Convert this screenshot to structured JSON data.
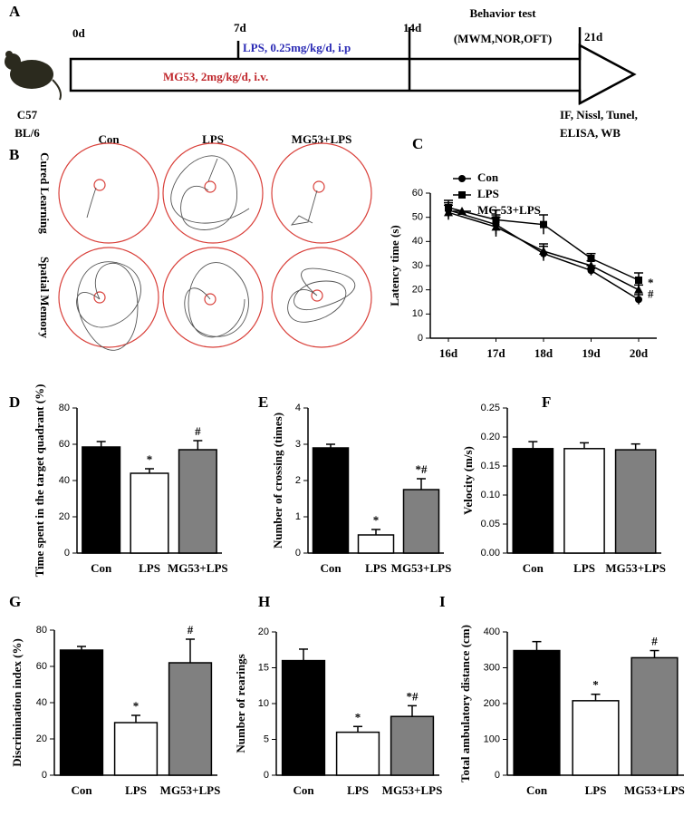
{
  "timeline": {
    "panel": "A",
    "start": "0d",
    "mid": "7d",
    "second": "14d",
    "end": "21d",
    "behavior_title": "Behavior test",
    "behavior_list": "(MWM,NOR,OFT)",
    "lps": "LPS, 0.25mg/kg/d, i.p",
    "mg53": "MG53, 2mg/kg/d, i.v.",
    "strain_line1": "C57",
    "strain_line2": "BL/6",
    "assays_line1": "IF, Nissl, Tunel,",
    "assays_line2": "ELISA, WB"
  },
  "maze": {
    "panel": "B",
    "columns": [
      "Con",
      "LPS",
      "MG53+LPS"
    ],
    "rows": [
      "Cured Learning",
      "Spatial Memory"
    ]
  },
  "chart_data": [
    {
      "type": "line",
      "panel": "C",
      "y_label": "Latency time (s)",
      "categories": [
        "16d",
        "17d",
        "18d",
        "19d",
        "20d"
      ],
      "ylim": [
        0,
        60
      ],
      "yticks": [
        0,
        10,
        20,
        30,
        40,
        50,
        60
      ],
      "series": [
        {
          "name": "Con",
          "color": "#000000",
          "marker": "circle",
          "values": [
            53,
            47,
            35,
            28,
            16
          ],
          "errors": [
            3,
            4,
            3,
            2,
            2
          ]
        },
        {
          "name": "LPS",
          "color": "#000000",
          "marker": "square",
          "values": [
            54,
            49,
            47,
            33,
            24
          ],
          "errors": [
            3,
            4,
            4,
            2,
            3
          ],
          "end_label": "*"
        },
        {
          "name": "MG 53+LPS",
          "color": "#000000",
          "marker": "triangle",
          "values": [
            52,
            46,
            36,
            30,
            20
          ],
          "errors": [
            3,
            4,
            3,
            2,
            2
          ],
          "end_label": "#"
        }
      ]
    },
    {
      "type": "bar",
      "panel": "D",
      "y_label": "Time spent in the target quadrant (%)",
      "categories": [
        "Con",
        "LPS",
        "MG53+LPS"
      ],
      "values": [
        58.5,
        44,
        57
      ],
      "errors": [
        3,
        2.5,
        5
      ],
      "annotations": [
        null,
        "*",
        "#"
      ],
      "colors": [
        "#000000",
        "#ffffff",
        "#808080"
      ],
      "ylim": [
        0,
        80
      ],
      "yticks": [
        0,
        20,
        40,
        60,
        80
      ]
    },
    {
      "type": "bar",
      "panel": "E",
      "y_label": "Number of crossing (times)",
      "categories": [
        "Con",
        "LPS",
        "MG53+LPS"
      ],
      "values": [
        2.9,
        0.5,
        1.75
      ],
      "errors": [
        0.1,
        0.15,
        0.3
      ],
      "annotations": [
        null,
        "*",
        "*#"
      ],
      "colors": [
        "#000000",
        "#ffffff",
        "#808080"
      ],
      "ylim": [
        0,
        4
      ],
      "yticks": [
        0,
        1,
        2,
        3,
        4
      ]
    },
    {
      "type": "bar",
      "panel": "F",
      "y_label": "Velocity (m/s)",
      "categories": [
        "Con",
        "LPS",
        "MG53+LPS"
      ],
      "values": [
        0.18,
        0.18,
        0.178
      ],
      "errors": [
        0.012,
        0.01,
        0.01
      ],
      "annotations": [
        null,
        null,
        null
      ],
      "colors": [
        "#000000",
        "#ffffff",
        "#808080"
      ],
      "ylim": [
        0,
        0.25
      ],
      "yticks": [
        {
          "value": 0,
          "label": "0.00"
        },
        {
          "value": 0.05,
          "label": "0.05"
        },
        {
          "value": 0.1,
          "label": "0.10"
        },
        {
          "value": 0.15,
          "label": "0.15"
        },
        {
          "value": 0.2,
          "label": "0.20"
        },
        {
          "value": 0.25,
          "label": "0.25"
        }
      ]
    },
    {
      "type": "bar",
      "panel": "G",
      "y_label": "Discrimination index (%)",
      "categories": [
        "Con",
        "LPS",
        "MG53+LPS"
      ],
      "values": [
        69,
        29,
        62
      ],
      "errors": [
        2,
        4,
        13
      ],
      "annotations": [
        null,
        "*",
        "#"
      ],
      "colors": [
        "#000000",
        "#ffffff",
        "#808080"
      ],
      "ylim": [
        0,
        80
      ],
      "yticks": [
        0,
        20,
        40,
        60,
        80
      ]
    },
    {
      "type": "bar",
      "panel": "H",
      "y_label": "Number of rearings",
      "categories": [
        "Con",
        "LPS",
        "MG53+LPS"
      ],
      "values": [
        16,
        6,
        8.2
      ],
      "errors": [
        1.6,
        0.8,
        1.5
      ],
      "annotations": [
        null,
        "*",
        "*#"
      ],
      "colors": [
        "#000000",
        "#ffffff",
        "#808080"
      ],
      "ylim": [
        0,
        20
      ],
      "yticks": [
        0,
        5,
        10,
        15,
        20
      ]
    },
    {
      "type": "bar",
      "panel": "I",
      "y_label": "Total ambulatory distance (cm)",
      "categories": [
        "Con",
        "LPS",
        "MG53+LPS"
      ],
      "values": [
        348,
        208,
        328
      ],
      "errors": [
        25,
        18,
        20
      ],
      "annotations": [
        null,
        "*",
        "#"
      ],
      "colors": [
        "#000000",
        "#ffffff",
        "#808080"
      ],
      "ylim": [
        0,
        400
      ],
      "yticks": [
        0,
        100,
        200,
        300,
        400
      ]
    }
  ]
}
